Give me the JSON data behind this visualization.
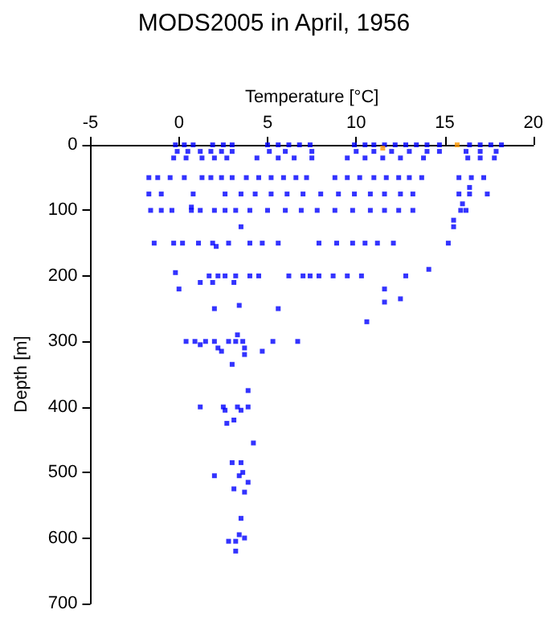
{
  "chart_data": {
    "type": "scatter",
    "title": "MODS2005 in April, 1956",
    "xlabel": "Temperature [°C]",
    "ylabel": "Depth [m]",
    "xlim": [
      -5,
      20
    ],
    "xticks": [
      -5,
      0,
      5,
      10,
      15,
      20
    ],
    "ylim": [
      700,
      0
    ],
    "yticks": [
      0,
      100,
      200,
      300,
      400,
      500,
      600,
      700
    ],
    "grid": false,
    "marker": "square",
    "series": [
      {
        "color": "#0000ff",
        "x": [
          -0.2,
          0.3,
          0.8,
          1.9,
          2.5,
          3.0,
          5.0,
          5.6,
          6.2,
          6.8,
          7.4,
          9.9,
          10.5,
          11.0,
          11.6,
          12.2,
          12.8,
          13.4,
          14.0,
          14.7,
          16.4,
          17.0,
          17.6,
          18.2,
          -0.1,
          0.5,
          1.2,
          1.8,
          2.4,
          3.0,
          5.1,
          6.0,
          7.5,
          10.0,
          11.0,
          12.0,
          13.0,
          14.0,
          14.7,
          16.2,
          17.0,
          17.9,
          -0.3,
          0.4,
          1.3,
          2.0,
          2.7,
          4.4,
          5.6,
          6.5,
          7.5,
          9.5,
          10.5,
          11.5,
          12.5,
          13.8,
          16.3,
          17.0,
          17.8,
          -1.7,
          -1.2,
          -0.5,
          0.3,
          1.3,
          1.8,
          2.4,
          3.0,
          3.8,
          4.5,
          5.2,
          5.9,
          6.6,
          7.2,
          8.8,
          9.5,
          10.2,
          11.0,
          11.7,
          12.4,
          13.0,
          13.7,
          15.8,
          16.5,
          17.2,
          16.4,
          -1.7,
          -1.0,
          0.8,
          2.6,
          3.5,
          4.3,
          5.2,
          6.1,
          7.0,
          8.0,
          9.0,
          9.9,
          10.8,
          11.6,
          12.5,
          13.2,
          15.8,
          16.4,
          17.4,
          16.0,
          0.7,
          -1.6,
          -1.0,
          -0.4,
          0.7,
          1.2,
          2.0,
          2.6,
          3.2,
          4.0,
          5.0,
          6.0,
          6.9,
          7.8,
          8.8,
          9.8,
          10.8,
          11.6,
          12.4,
          13.2,
          15.9,
          16.2,
          15.5,
          3.5,
          15.5,
          -1.4,
          -0.3,
          0.2,
          1.1,
          1.9,
          2.8,
          4.0,
          4.7,
          5.6,
          7.9,
          8.9,
          9.8,
          10.5,
          11.2,
          12.1,
          15.2,
          2.1,
          14.1,
          -0.2,
          1.7,
          2.2,
          2.6,
          3.2,
          4.0,
          4.5,
          6.2,
          7.0,
          7.4,
          7.9,
          8.7,
          9.5,
          10.3,
          12.8,
          1.2,
          1.9,
          3.1,
          0.0,
          11.6,
          12.5,
          11.6,
          3.4,
          2.0,
          5.6,
          10.6,
          3.3,
          0.4,
          0.9,
          1.5,
          2.0,
          2.8,
          3.2,
          3.6,
          5.3,
          6.7,
          1.2,
          3.7,
          2.2,
          2.4,
          4.7,
          3.7,
          3.0,
          3.9,
          1.2,
          2.5,
          3.3,
          3.9,
          2.6,
          3.5,
          3.1,
          2.7,
          4.2,
          3.0,
          3.5,
          3.6,
          2.0,
          3.4,
          3.9,
          3.1,
          3.7,
          3.5,
          3.4,
          3.7,
          2.8,
          3.2,
          3.2
        ],
        "values": [
          0,
          0,
          0,
          0,
          0,
          0,
          0,
          0,
          0,
          0,
          0,
          0,
          0,
          0,
          0,
          0,
          0,
          0,
          0,
          0,
          0,
          0,
          0,
          0,
          10,
          10,
          10,
          10,
          10,
          10,
          10,
          10,
          10,
          10,
          10,
          10,
          10,
          10,
          10,
          10,
          10,
          10,
          20,
          20,
          20,
          20,
          20,
          20,
          20,
          20,
          20,
          20,
          20,
          20,
          20,
          20,
          20,
          20,
          20,
          50,
          50,
          50,
          50,
          50,
          50,
          50,
          50,
          50,
          50,
          50,
          50,
          50,
          50,
          50,
          50,
          50,
          50,
          50,
          50,
          50,
          50,
          50,
          50,
          50,
          65,
          75,
          75,
          75,
          75,
          75,
          75,
          75,
          75,
          75,
          75,
          75,
          75,
          75,
          75,
          75,
          75,
          75,
          75,
          75,
          90,
          95,
          100,
          100,
          100,
          100,
          100,
          100,
          100,
          100,
          100,
          100,
          100,
          100,
          100,
          100,
          100,
          100,
          100,
          100,
          100,
          100,
          100,
          115,
          125,
          125,
          150,
          150,
          150,
          150,
          150,
          150,
          150,
          150,
          150,
          150,
          150,
          150,
          150,
          150,
          150,
          150,
          155,
          190,
          195,
          200,
          200,
          200,
          200,
          200,
          200,
          200,
          200,
          200,
          200,
          200,
          200,
          200,
          200,
          210,
          210,
          210,
          220,
          220,
          235,
          240,
          245,
          250,
          250,
          270,
          290,
          300,
          300,
          300,
          300,
          300,
          300,
          300,
          300,
          300,
          305,
          310,
          310,
          315,
          315,
          320,
          335,
          375,
          400,
          400,
          400,
          400,
          405,
          405,
          420,
          425,
          455,
          485,
          485,
          500,
          505,
          505,
          515,
          525,
          530,
          570,
          595,
          600,
          605,
          605,
          620
        ]
      },
      {
        "color": "#ff9900",
        "x": [
          11.5,
          15.7
        ],
        "values": [
          5,
          0
        ]
      }
    ]
  }
}
